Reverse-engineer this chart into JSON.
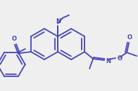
{
  "bg_color": "#efefef",
  "line_color": "#4444bb",
  "line_width": 1.3,
  "figsize": [
    1.96,
    1.3
  ],
  "dpi": 100,
  "xlim": [
    0,
    196
  ],
  "ylim": [
    0,
    130
  ]
}
